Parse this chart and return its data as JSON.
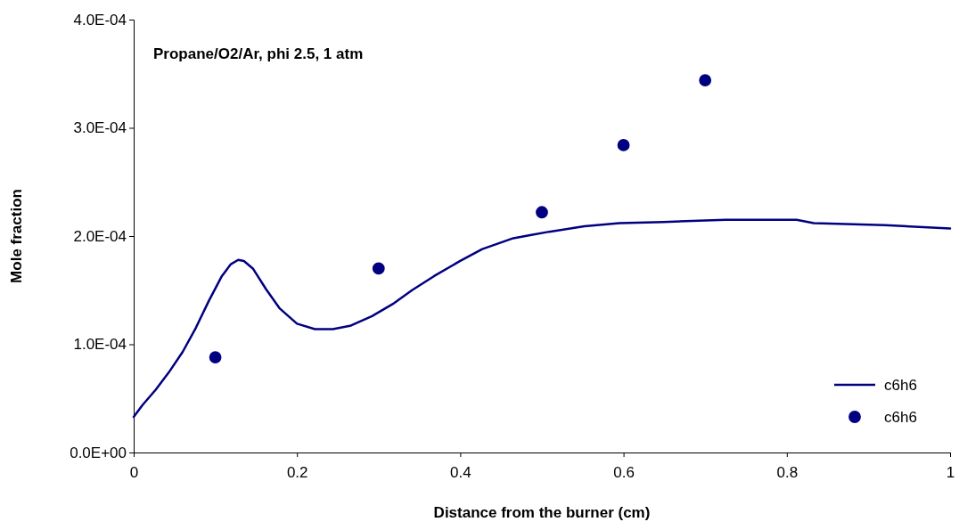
{
  "chart_data": {
    "type": "line",
    "title": "Propane/O2/Ar, phi 2.5, 1 atm",
    "xlabel": "Distance from the burner (cm)",
    "ylabel": "Mole fraction",
    "xlim": [
      0,
      1
    ],
    "xticks": [
      0,
      0.2,
      0.4,
      0.6,
      0.8,
      1
    ],
    "ylim": [
      0,
      0.0004
    ],
    "yticks": [
      {
        "value": 0,
        "label": "0.0E+00"
      },
      {
        "value": 0.0001,
        "label": "1.0E-04"
      },
      {
        "value": 0.0002,
        "label": "2.0E-04"
      },
      {
        "value": 0.0003,
        "label": "3.0E-04"
      },
      {
        "value": 0.0004,
        "label": "4.0E-04"
      }
    ],
    "grid": false,
    "legend": "bottom right",
    "series": [
      {
        "name": "c6h6",
        "color": "#000080",
        "marker": "none",
        "x": [
          0,
          0.011,
          0.027,
          0.043,
          0.06,
          0.076,
          0.092,
          0.108,
          0.119,
          0.128,
          0.135,
          0.146,
          0.162,
          0.179,
          0.2,
          0.222,
          0.244,
          0.265,
          0.292,
          0.319,
          0.341,
          0.368,
          0.4,
          0.427,
          0.465,
          0.487,
          0.509,
          0.552,
          0.595,
          0.649,
          0.725,
          0.812,
          0.833,
          0.92,
          1
        ],
        "values": [
          3.3e-05,
          4.4e-05,
          5.8e-05,
          7.4e-05,
          9.3e-05,
          0.000115,
          0.00014,
          0.000163,
          0.000174,
          0.000178,
          0.000177,
          0.00017,
          0.000151,
          0.000133,
          0.000119,
          0.000114,
          0.000114,
          0.000117,
          0.000126,
          0.000138,
          0.00015,
          0.000163,
          0.000177,
          0.000188,
          0.000198,
          0.000201,
          0.000204,
          0.000209,
          0.000212,
          0.000213,
          0.000215,
          0.000215,
          0.000212,
          0.00021,
          0.000207
        ]
      },
      {
        "name": "c6h6",
        "type": "scatter",
        "color": "#000080",
        "marker": "circle",
        "x": [
          0.1,
          0.3,
          0.5,
          0.6,
          0.7
        ],
        "values": [
          8.8e-05,
          0.00017,
          0.000222,
          0.000284,
          0.000344
        ]
      }
    ]
  }
}
